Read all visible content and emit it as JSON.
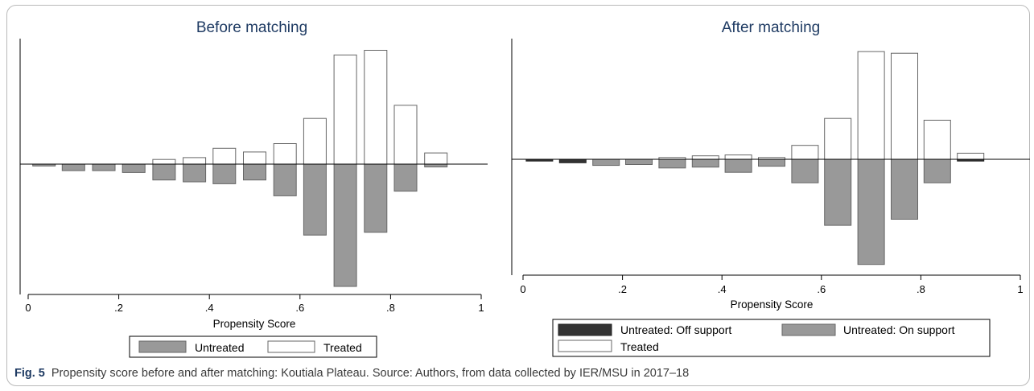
{
  "caption": {
    "label": "Fig. 5",
    "text": "Propensity score before and after matching: Koutiala Plateau. Source: Authors, from data collected by IER/MSU in 2017–18"
  },
  "colors": {
    "untreated": "#999999",
    "off_support": "#333333",
    "treated": "#ffffff",
    "title": "#1f3b63"
  },
  "chart_data": [
    {
      "type": "bar",
      "title": "Before matching",
      "xlabel": "Propensity Score",
      "xlim": [
        0,
        1
      ],
      "xticks": [
        "0",
        ".2",
        ".4",
        ".6",
        ".8",
        "1"
      ],
      "x": [
        0.035,
        0.1,
        0.167,
        0.233,
        0.3,
        0.367,
        0.433,
        0.5,
        0.567,
        0.633,
        0.7,
        0.767,
        0.833,
        0.9
      ],
      "series": [
        {
          "name": "Treated",
          "direction": "up",
          "values": [
            0,
            0,
            0,
            0,
            0.05,
            0.07,
            0.17,
            0.13,
            0.22,
            0.49,
            1.17,
            1.22,
            0.63,
            0.12
          ]
        },
        {
          "name": "Untreated",
          "direction": "down",
          "values": [
            0.02,
            0.07,
            0.07,
            0.09,
            0.17,
            0.19,
            0.21,
            0.17,
            0.34,
            0.76,
            1.31,
            0.73,
            0.29,
            0.03
          ]
        }
      ],
      "legend": {
        "position": "bottom",
        "entries": [
          "Untreated",
          "Treated"
        ]
      },
      "grid": false
    },
    {
      "type": "bar",
      "title": "After matching",
      "xlabel": "Propensity Score",
      "xlim": [
        0,
        1
      ],
      "xticks": [
        "0",
        ".2",
        ".4",
        ".6",
        ".8",
        "1"
      ],
      "x": [
        0.033,
        0.1,
        0.167,
        0.233,
        0.3,
        0.367,
        0.433,
        0.5,
        0.567,
        0.633,
        0.7,
        0.767,
        0.833,
        0.9
      ],
      "series": [
        {
          "name": "Treated",
          "direction": "up",
          "values": [
            0,
            0,
            0,
            0,
            0.02,
            0.04,
            0.05,
            0.02,
            0.16,
            0.47,
            1.24,
            1.22,
            0.45,
            0.07
          ]
        },
        {
          "name": "Untreated: On support",
          "direction": "down",
          "values": [
            0,
            0,
            0.07,
            0.06,
            0.1,
            0.09,
            0.15,
            0.08,
            0.27,
            0.76,
            1.21,
            0.69,
            0.27,
            0
          ]
        },
        {
          "name": "Untreated: Off support",
          "direction": "down",
          "values": [
            0.02,
            0.04,
            0,
            0,
            0,
            0,
            0,
            0,
            0,
            0,
            0,
            0,
            0,
            0.02
          ]
        }
      ],
      "legend": {
        "position": "bottom",
        "entries": [
          "Untreated: Off support",
          "Untreated: On support",
          "Treated"
        ]
      },
      "grid": false
    }
  ]
}
